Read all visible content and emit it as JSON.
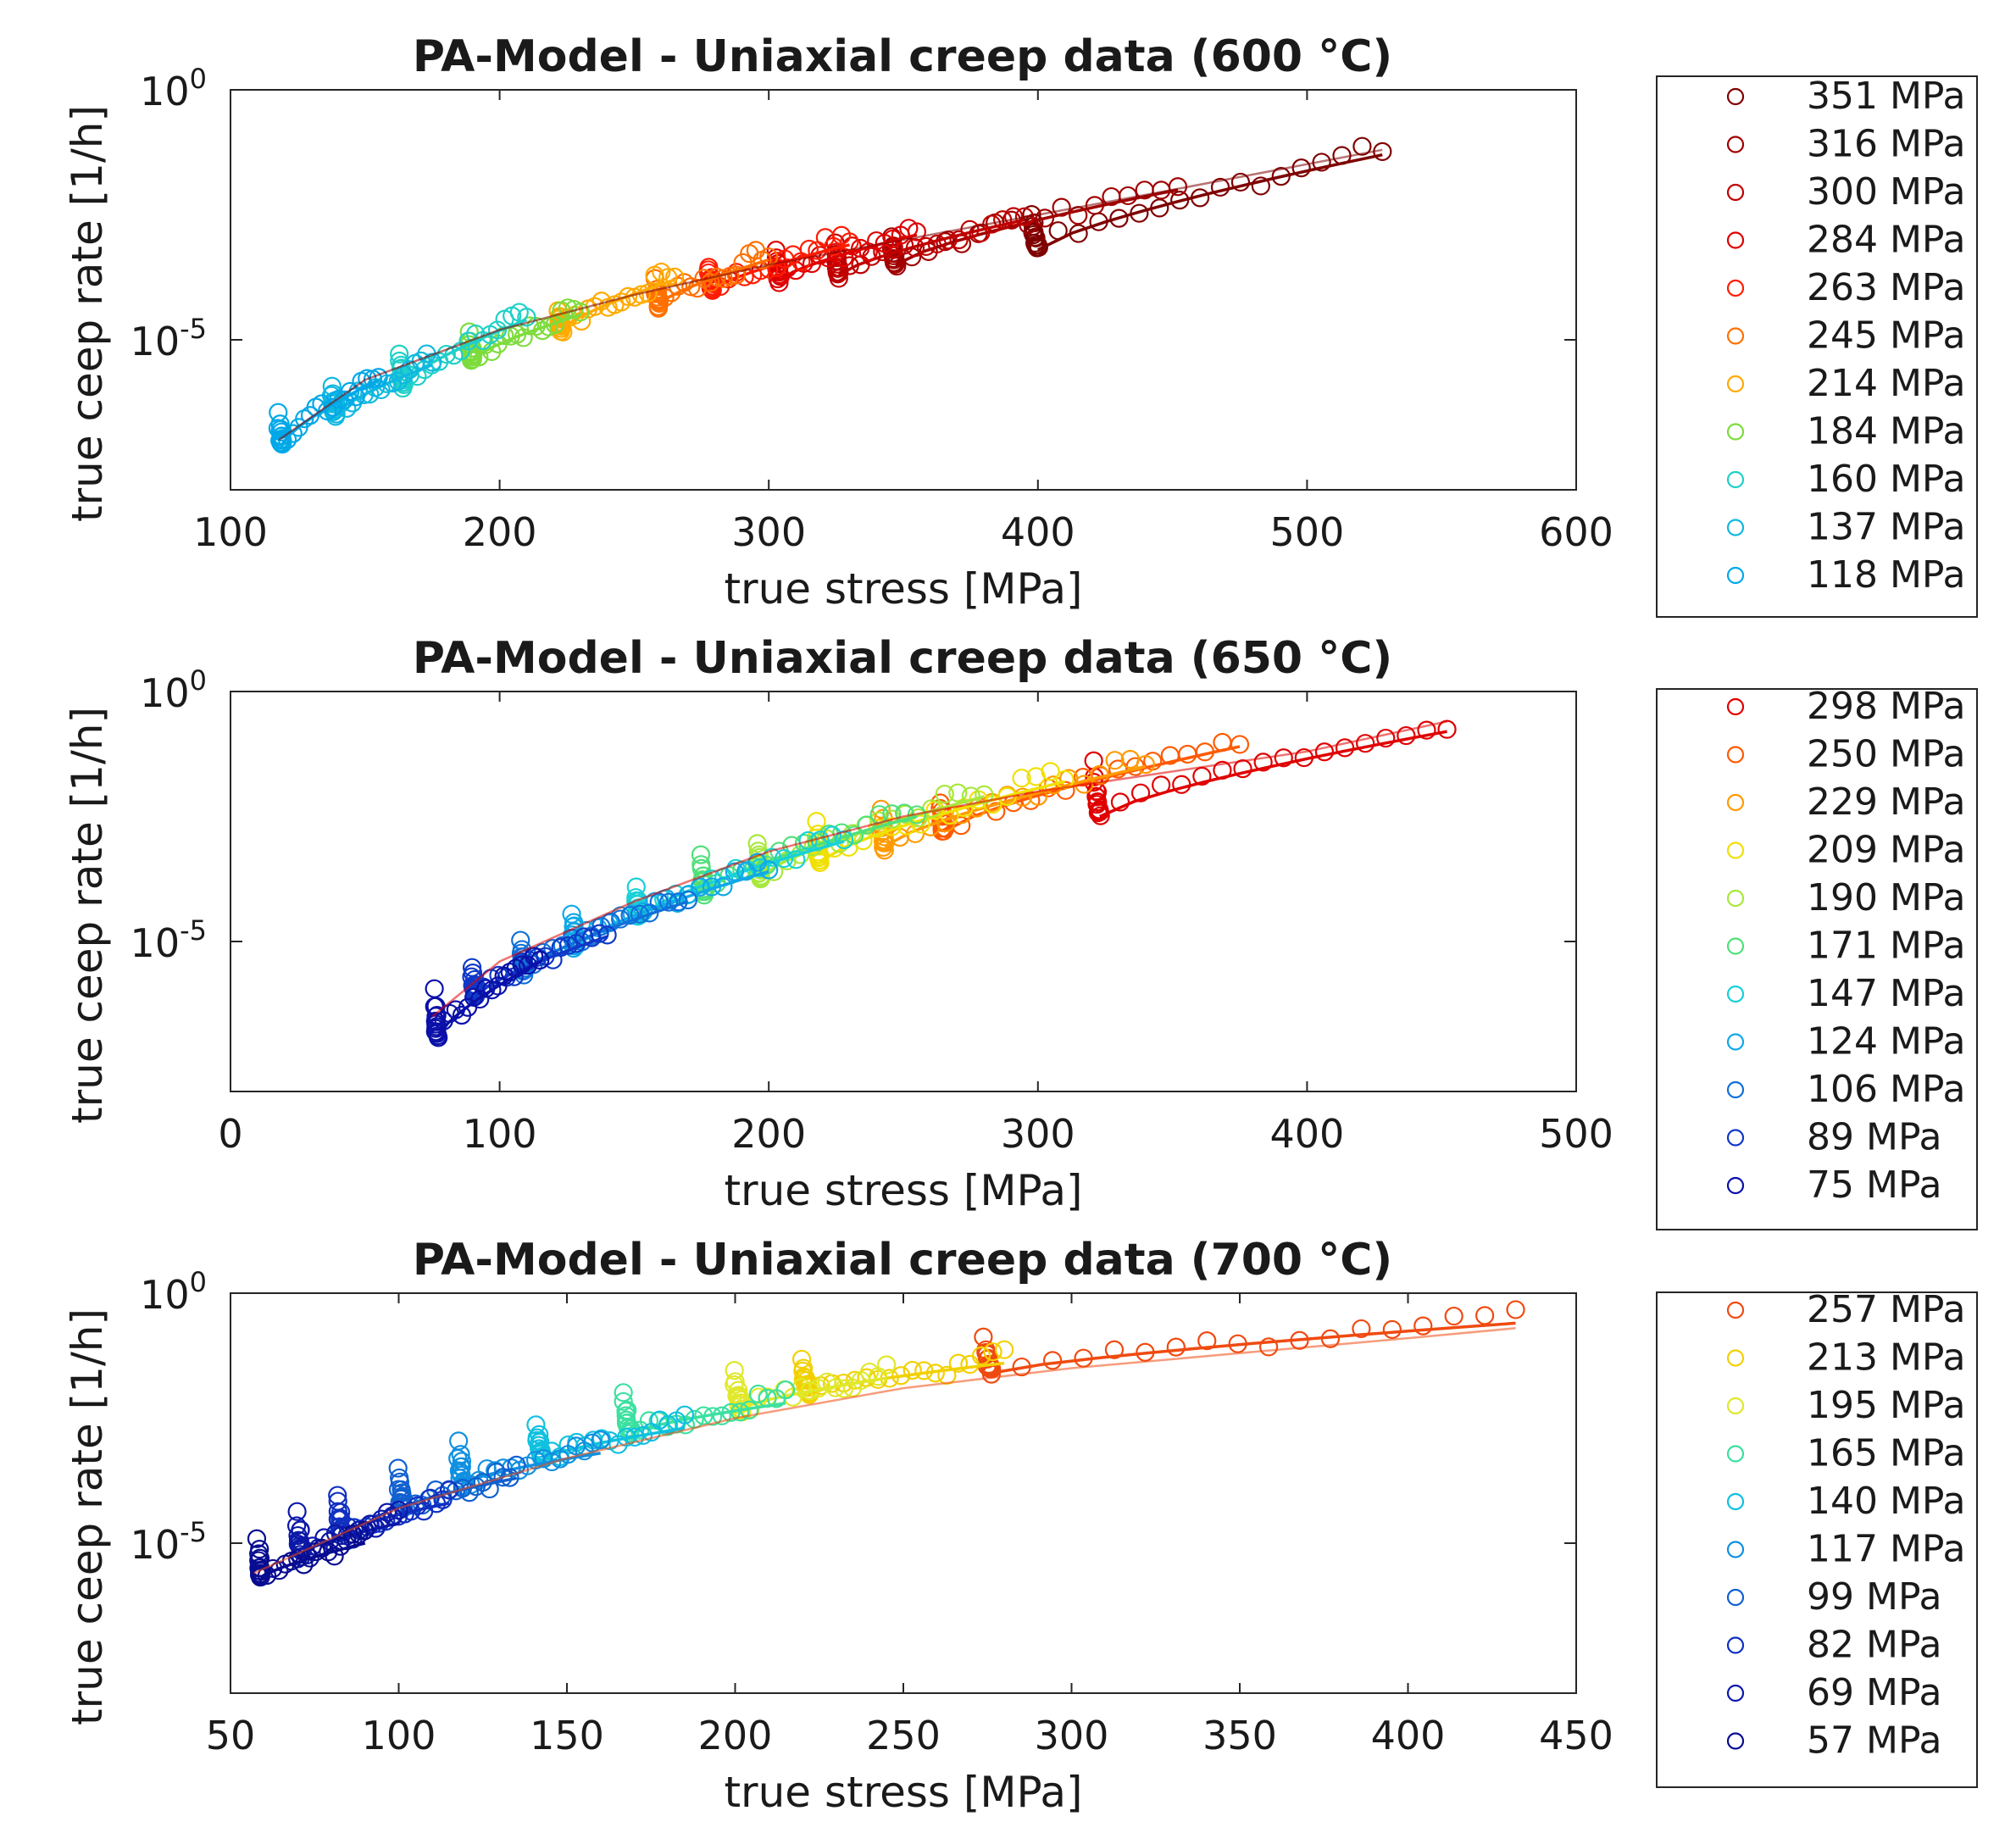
{
  "figure": {
    "panels": [
      {
        "title": "PA-Model - Uniaxial creep data (600 °C)",
        "xlabel": "true stress [MPa]",
        "ylabel": "true ceep rate [1/h]",
        "xticks": [
          "100",
          "200",
          "300",
          "400",
          "500",
          "600"
        ],
        "yticks": [
          {
            "base": "10",
            "exp": "0"
          },
          {
            "base": "10",
            "exp": "-5"
          }
        ],
        "legend": [
          "351 MPa",
          "316 MPa",
          "300 MPa",
          "284 MPa",
          "263 MPa",
          "245 MPa",
          "214 MPa",
          "184 MPa",
          "160 MPa",
          "137 MPa",
          "118 MPa"
        ]
      },
      {
        "title": "PA-Model - Uniaxial creep data (650 °C)",
        "xlabel": "true stress [MPa]",
        "ylabel": "true ceep rate [1/h]",
        "xticks": [
          "0",
          "100",
          "200",
          "300",
          "400",
          "500"
        ],
        "yticks": [
          {
            "base": "10",
            "exp": "0"
          },
          {
            "base": "10",
            "exp": "-5"
          }
        ],
        "legend": [
          "298 MPa",
          "250 MPa",
          "229 MPa",
          "209 MPa",
          "190 MPa",
          "171 MPa",
          "147 MPa",
          "124 MPa",
          "106 MPa",
          "89 MPa",
          "75 MPa"
        ]
      },
      {
        "title": "PA-Model - Uniaxial creep data (700 °C)",
        "xlabel": "true stress [MPa]",
        "ylabel": "true ceep rate [1/h]",
        "xticks": [
          "50",
          "100",
          "150",
          "200",
          "250",
          "300",
          "350",
          "400",
          "450"
        ],
        "yticks": [
          {
            "base": "10",
            "exp": "0"
          },
          {
            "base": "10",
            "exp": "-5"
          }
        ],
        "legend": [
          "257 MPa",
          "213 MPa",
          "195 MPa",
          "165 MPa",
          "140 MPa",
          "117 MPa",
          "99 MPa",
          "82 MPa",
          "69 MPa",
          "57 MPa"
        ]
      }
    ]
  },
  "chart_data": [
    {
      "type": "scatter",
      "title": "PA-Model - Uniaxial creep data (600 °C)",
      "xlabel": "true stress [MPa]",
      "ylabel": "true ceep rate [1/h]",
      "xlim": [
        100,
        600
      ],
      "ylim_log10": [
        -8,
        0
      ],
      "yscale": "log",
      "series": [
        {
          "name": "351 MPa",
          "color": "#7f0000",
          "start": [
            400,
            -3.2
          ],
          "end": [
            528,
            -1.3
          ],
          "peak": [
            398,
            -2.5
          ]
        },
        {
          "name": "316 MPa",
          "color": "#a00000",
          "start": [
            347,
            -3.5
          ],
          "end": [
            452,
            -2.0
          ],
          "peak": [
            346,
            -2.9
          ]
        },
        {
          "name": "300 MPa",
          "color": "#bf0000",
          "start": [
            326,
            -3.7
          ],
          "end": [
            395,
            -2.6
          ],
          "peak": [
            325,
            -3.1
          ]
        },
        {
          "name": "284 MPa",
          "color": "#df0000",
          "start": [
            304,
            -3.8
          ],
          "end": [
            355,
            -2.9
          ],
          "peak": [
            303,
            -3.2
          ]
        },
        {
          "name": "263 MPa",
          "color": "#ff1c00",
          "start": [
            279,
            -4.0
          ],
          "end": [
            330,
            -3.1
          ],
          "peak": [
            278,
            -3.5
          ]
        },
        {
          "name": "245 MPa",
          "color": "#ff7000",
          "start": [
            259,
            -4.3
          ],
          "end": [
            300,
            -3.4
          ],
          "peak": [
            258,
            -3.8
          ]
        },
        {
          "name": "214 MPa",
          "color": "#ffaa00",
          "start": [
            223,
            -4.8
          ],
          "end": [
            265,
            -3.8
          ],
          "peak": [
            222,
            -4.4
          ]
        },
        {
          "name": "184 MPa",
          "color": "#7ddc3c",
          "start": [
            190,
            -5.4
          ],
          "end": [
            230,
            -4.5
          ],
          "peak": [
            189,
            -4.9
          ]
        },
        {
          "name": "160 MPa",
          "color": "#1fd0c8",
          "start": [
            164,
            -5.9
          ],
          "end": [
            210,
            -4.6
          ],
          "peak": [
            163,
            -5.3
          ]
        },
        {
          "name": "137 MPa",
          "color": "#10b8e0",
          "start": [
            139,
            -6.5
          ],
          "end": [
            175,
            -5.5
          ],
          "peak": [
            138,
            -5.9
          ]
        },
        {
          "name": "118 MPa",
          "color": "#00a8e8",
          "start": [
            119,
            -7.1
          ],
          "end": [
            155,
            -5.8
          ],
          "peak": [
            118,
            -6.5
          ]
        }
      ],
      "model_curve": {
        "x": [
          118,
          150,
          200,
          250,
          300,
          350,
          400,
          450,
          528
        ],
        "y_log10": [
          -7.0,
          -5.8,
          -4.8,
          -4.1,
          -3.5,
          -3.0,
          -2.5,
          -2.0,
          -1.2
        ]
      }
    },
    {
      "type": "scatter",
      "title": "PA-Model - Uniaxial creep data (650 °C)",
      "xlabel": "true stress [MPa]",
      "ylabel": "true ceep rate [1/h]",
      "xlim": [
        0,
        500
      ],
      "ylim_log10": [
        -8,
        0
      ],
      "yscale": "log",
      "series": [
        {
          "name": "298 MPa",
          "color": "#e00000",
          "start": [
            323,
            -2.5
          ],
          "end": [
            452,
            -0.8
          ],
          "peak": [
            321,
            -1.4
          ]
        },
        {
          "name": "250 MPa",
          "color": "#ff5a00",
          "start": [
            265,
            -2.8
          ],
          "end": [
            375,
            -1.1
          ],
          "peak": [
            264,
            -2.2
          ]
        },
        {
          "name": "229 MPa",
          "color": "#ff9a00",
          "start": [
            243,
            -3.1
          ],
          "end": [
            340,
            -1.5
          ],
          "peak": [
            242,
            -2.4
          ]
        },
        {
          "name": "209 MPa",
          "color": "#f0e000",
          "start": [
            219,
            -3.4
          ],
          "end": [
            310,
            -1.8
          ],
          "peak": [
            218,
            -2.6
          ]
        },
        {
          "name": "190 MPa",
          "color": "#a8e83c",
          "start": [
            197,
            -3.7
          ],
          "end": [
            280,
            -2.1
          ],
          "peak": [
            196,
            -3.0
          ]
        },
        {
          "name": "171 MPa",
          "color": "#50e07a",
          "start": [
            176,
            -4.0
          ],
          "end": [
            255,
            -2.5
          ],
          "peak": [
            175,
            -3.3
          ]
        },
        {
          "name": "147 MPa",
          "color": "#18d0d8",
          "start": [
            152,
            -4.5
          ],
          "end": [
            228,
            -3.0
          ],
          "peak": [
            151,
            -3.9
          ]
        },
        {
          "name": "124 MPa",
          "color": "#10a8e8",
          "start": [
            128,
            -5.1
          ],
          "end": [
            200,
            -3.6
          ],
          "peak": [
            127,
            -4.4
          ]
        },
        {
          "name": "106 MPa",
          "color": "#1070d8",
          "start": [
            109,
            -5.6
          ],
          "end": [
            170,
            -4.2
          ],
          "peak": [
            108,
            -5.0
          ]
        },
        {
          "name": "89 MPa",
          "color": "#1038c8",
          "start": [
            91,
            -6.1
          ],
          "end": [
            140,
            -4.9
          ],
          "peak": [
            90,
            -5.5
          ]
        },
        {
          "name": "75 MPa",
          "color": "#0a10a8",
          "start": [
            77,
            -6.9
          ],
          "end": [
            115,
            -5.4
          ],
          "peak": [
            76,
            -6.0
          ]
        }
      ],
      "model_curve": {
        "x": [
          75,
          100,
          150,
          200,
          250,
          300,
          350,
          400,
          452
        ],
        "y_log10": [
          -6.5,
          -5.4,
          -4.2,
          -3.2,
          -2.5,
          -2.0,
          -1.6,
          -1.2,
          -0.6
        ]
      }
    },
    {
      "type": "scatter",
      "title": "PA-Model - Uniaxial creep data (700 °C)",
      "xlabel": "true stress [MPa]",
      "ylabel": "true ceep rate [1/h]",
      "xlim": [
        50,
        450
      ],
      "ylim_log10": [
        -8,
        0
      ],
      "yscale": "log",
      "series": [
        {
          "name": "257 MPa",
          "color": "#f04a10",
          "start": [
            276,
            -1.6
          ],
          "end": [
            432,
            -0.6
          ],
          "peak": [
            274,
            -0.9
          ]
        },
        {
          "name": "213 MPa",
          "color": "#f2d000",
          "start": [
            222,
            -2.0
          ],
          "end": [
            280,
            -1.4
          ],
          "peak": [
            220,
            -1.3
          ]
        },
        {
          "name": "195 MPa",
          "color": "#e0e82a",
          "start": [
            202,
            -2.3
          ],
          "end": [
            245,
            -1.7
          ],
          "peak": [
            200,
            -1.6
          ]
        },
        {
          "name": "165 MPa",
          "color": "#3ce0a0",
          "start": [
            169,
            -2.8
          ],
          "end": [
            215,
            -2.2
          ],
          "peak": [
            167,
            -2.0
          ]
        },
        {
          "name": "140 MPa",
          "color": "#10c0e0",
          "start": [
            143,
            -3.3
          ],
          "end": [
            185,
            -2.7
          ],
          "peak": [
            141,
            -2.6
          ]
        },
        {
          "name": "117 MPa",
          "color": "#1090e0",
          "start": [
            119,
            -3.8
          ],
          "end": [
            160,
            -3.2
          ],
          "peak": [
            118,
            -3.0
          ]
        },
        {
          "name": "99 MPa",
          "color": "#1060d0",
          "start": [
            101,
            -4.3
          ],
          "end": [
            135,
            -3.7
          ],
          "peak": [
            100,
            -3.5
          ]
        },
        {
          "name": "82 MPa",
          "color": "#1030c0",
          "start": [
            83,
            -4.8
          ],
          "end": [
            115,
            -4.2
          ],
          "peak": [
            82,
            -4.0
          ]
        },
        {
          "name": "69 MPa",
          "color": "#0c18a8",
          "start": [
            71,
            -5.2
          ],
          "end": [
            100,
            -4.6
          ],
          "peak": [
            70,
            -4.4
          ]
        },
        {
          "name": "57 MPa",
          "color": "#080c90",
          "start": [
            59,
            -5.7
          ],
          "end": [
            90,
            -5.0
          ],
          "peak": [
            58,
            -4.9
          ]
        }
      ],
      "model_curve": {
        "x": [
          57,
          100,
          150,
          200,
          250,
          300,
          350,
          400,
          432
        ],
        "y_log10": [
          -5.6,
          -4.3,
          -3.3,
          -2.5,
          -1.9,
          -1.5,
          -1.2,
          -0.9,
          -0.7
        ]
      }
    }
  ]
}
